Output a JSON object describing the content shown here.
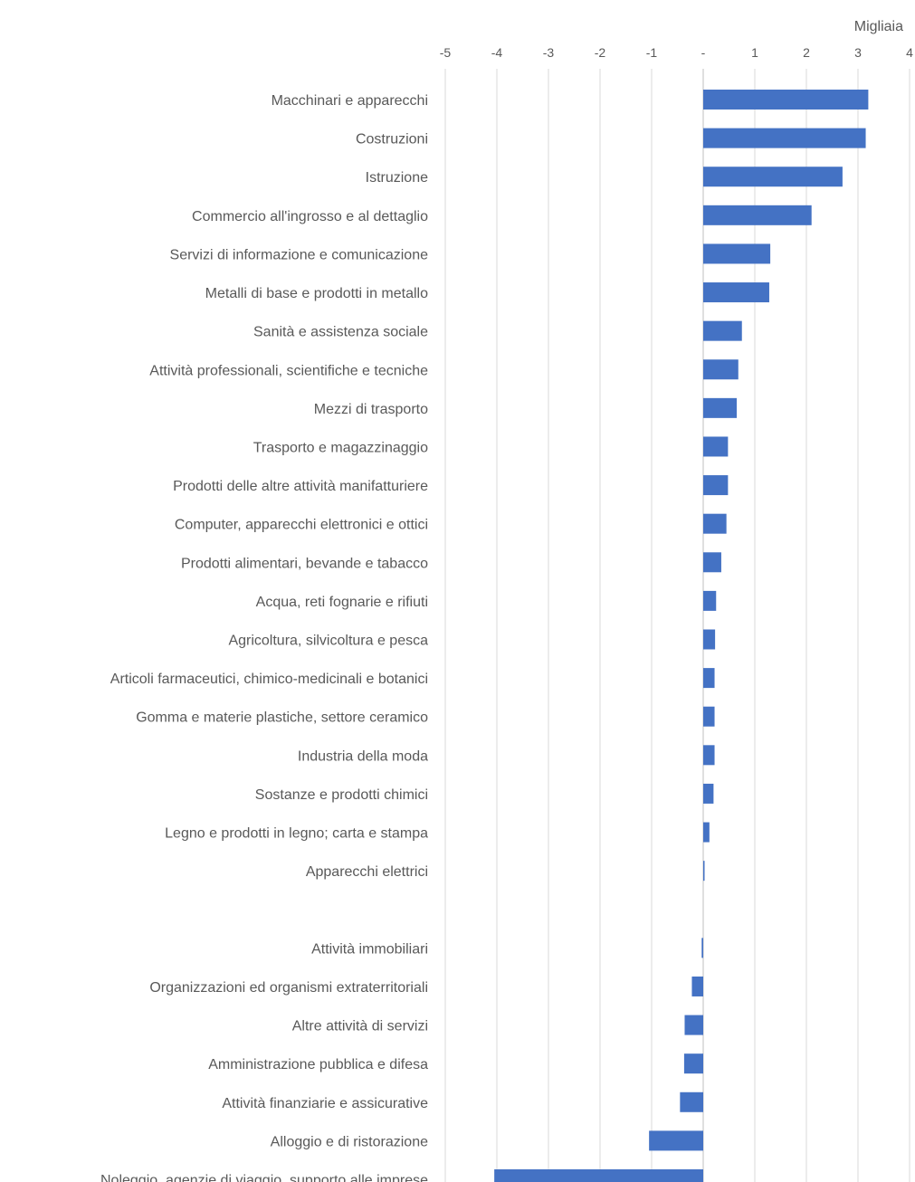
{
  "chart_data": {
    "type": "bar",
    "orientation": "horizontal",
    "unit_label": "Migliaia",
    "xlim": [
      -5,
      4
    ],
    "ticks": [
      -5,
      -4,
      -3,
      -2,
      -1,
      0,
      1,
      2,
      3,
      4
    ],
    "tick_labels": [
      "-5",
      "-4",
      "-3",
      "-2",
      "-1",
      "-",
      "1",
      "2",
      "3",
      "4"
    ],
    "grid": true,
    "tick_position": "top",
    "bar_color": "#4472c4",
    "categories": [
      "Macchinari e apparecchi",
      "Costruzioni",
      "Istruzione",
      "Commercio all'ingrosso e al dettaglio",
      "Servizi di informazione e comunicazione",
      "Metalli di base e prodotti in metallo",
      "Sanità e assistenza sociale",
      "Attività professionali, scientifiche e tecniche",
      "Mezzi di trasporto",
      "Trasporto e magazzinaggio",
      "Prodotti delle altre attività manifatturiere",
      "Computer, apparecchi elettronici e ottici",
      "Prodotti alimentari, bevande e tabacco",
      "Acqua, reti fognarie e rifiuti",
      "Agricoltura, silvicoltura e pesca",
      "Articoli farmaceutici, chimico-medicinali e botanici",
      "Gomma e materie plastiche, settore ceramico",
      "Industria della moda",
      "Sostanze e prodotti chimici",
      "Legno e prodotti in legno; carta e stampa",
      "Apparecchi elettrici",
      "",
      "Attività immobiliari",
      "Organizzazioni ed organismi extraterritoriali",
      "Altre attività di servizi",
      "Amministrazione pubblica e difesa",
      "Attività finanziarie e assicurative",
      "Alloggio e di ristorazione",
      "Noleggio, agenzie di viaggio, supporto alle imprese"
    ],
    "values": [
      3.2,
      3.15,
      2.7,
      2.1,
      1.3,
      1.28,
      0.75,
      0.68,
      0.65,
      0.48,
      0.48,
      0.45,
      0.35,
      0.25,
      0.23,
      0.22,
      0.22,
      0.22,
      0.2,
      0.12,
      0.02,
      0,
      -0.03,
      -0.22,
      -0.36,
      -0.37,
      -0.45,
      -1.05,
      -4.05
    ]
  }
}
